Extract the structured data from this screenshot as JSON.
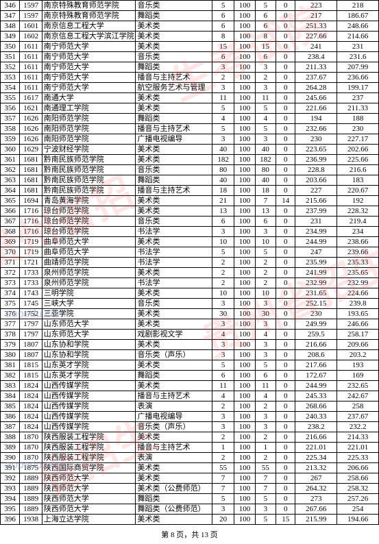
{
  "footer": "第 8 页，共 13 页",
  "rows": [
    [
      "346",
      "1597",
      "南京特殊教育师范学院",
      "音乐类",
      "5",
      "100",
      "5",
      "0",
      "223",
      "218"
    ],
    [
      "347",
      "1597",
      "南京特殊教育师范学院",
      "舞蹈类",
      "6",
      "100",
      "6",
      "0",
      "217",
      "186.67"
    ],
    [
      "348",
      "1601",
      "南京信息工程大学",
      "美术类",
      "6",
      "100",
      "6",
      "0",
      "251.33",
      "248.66"
    ],
    [
      "349",
      "1602",
      "南京信息工程大学滨江学院",
      "美术类",
      "8",
      "100",
      "8",
      "0",
      "227.66",
      "214.66"
    ],
    [
      "350",
      "1611",
      "南宁师范大学",
      "美术类",
      "15",
      "100",
      "15",
      "0",
      "241",
      "231"
    ],
    [
      "351",
      "1611",
      "南宁师范大学",
      "音乐类",
      "6",
      "100",
      "6",
      "0",
      "238.4",
      "231.6"
    ],
    [
      "352",
      "1611",
      "南宁师范大学",
      "舞蹈类",
      "3",
      "100",
      "3",
      "0",
      "211.33",
      "207.99"
    ],
    [
      "353",
      "1611",
      "南宁师范大学",
      "播音与主持艺术",
      "2",
      "100",
      "2",
      "0",
      "237.67",
      "236.66"
    ],
    [
      "354",
      "1611",
      "南宁师范大学",
      "航空服务艺术与管理",
      "3",
      "100",
      "3",
      "0",
      "264.28",
      "199.17"
    ],
    [
      "355",
      "1617",
      "南通大学",
      "美术类",
      "11",
      "100",
      "11",
      "0",
      "245.66",
      "237"
    ],
    [
      "356",
      "1621",
      "南通理工学院",
      "美术类",
      "5",
      "100",
      "5",
      "0",
      "221.66",
      "211.33"
    ],
    [
      "357",
      "1626",
      "南阳师范学院",
      "舞蹈类",
      "4",
      "100",
      "4",
      "0",
      "194",
      "188"
    ],
    [
      "358",
      "1626",
      "南阳师范学院",
      "播音与主持艺术",
      "5",
      "100",
      "5",
      "0",
      "232.66",
      "230"
    ],
    [
      "359",
      "1626",
      "南阳师范学院",
      "广播电视编导",
      "3",
      "100",
      "3",
      "0",
      "230",
      "227.17"
    ],
    [
      "360",
      "1629",
      "宁波财经学院",
      "美术类",
      "40",
      "100",
      "40",
      "0",
      "223.65",
      "202.66"
    ],
    [
      "361",
      "1681",
      "黔南民族师范学院",
      "美术类",
      "182",
      "100",
      "182",
      "0",
      "236.99",
      "225.66"
    ],
    [
      "362",
      "1681",
      "黔南民族师范学院",
      "音乐类",
      "80",
      "100",
      "80",
      "0",
      "228.8",
      "216.6"
    ],
    [
      "363",
      "1681",
      "黔南民族师范学院",
      "舞蹈类",
      "40",
      "100",
      "40",
      "0",
      "203.66",
      "183"
    ],
    [
      "364",
      "1681",
      "黔南民族师范学院",
      "播音与主持艺术",
      "18",
      "100",
      "18",
      "0",
      "227",
      "220.67"
    ],
    [
      "365",
      "1694",
      "青岛黄海学院",
      "美术类",
      "21",
      "100",
      "7",
      "14",
      "215.66",
      "192"
    ],
    [
      "366",
      "1716",
      "琼台师范学院",
      "美术类",
      "13",
      "100",
      "13",
      "0",
      "237.99",
      "228.32"
    ],
    [
      "367",
      "1716",
      "琼台师范学院",
      "音乐类",
      "6",
      "100",
      "6",
      "0",
      "231",
      "219.4"
    ],
    [
      "368",
      "1716",
      "琼台师范学院",
      "书法学",
      "3",
      "100",
      "3",
      "0",
      "234.99",
      "234"
    ],
    [
      "369",
      "1719",
      "曲阜师范大学",
      "美术类",
      "10",
      "100",
      "10",
      "0",
      "244.99",
      "238.66"
    ],
    [
      "370",
      "1719",
      "曲阜师范大学",
      "书法学",
      "5",
      "100",
      "5",
      "0",
      "247",
      "239.66"
    ],
    [
      "371",
      "1721",
      "曲靖师范学院",
      "书法学",
      "2",
      "100",
      "2",
      "0",
      "235.99",
      "235.33"
    ],
    [
      "372",
      "1733",
      "泉州师范学院",
      "美术类",
      "2",
      "100",
      "2",
      "0",
      "241.99",
      "235.65"
    ],
    [
      "373",
      "1733",
      "泉州师范学院",
      "书法学",
      "2",
      "100",
      "2",
      "0",
      "232.99",
      "232.99"
    ],
    [
      "374",
      "1743",
      "三明学院",
      "美术类",
      "10",
      "100",
      "10",
      "0",
      "231.65",
      "224.66"
    ],
    [
      "375",
      "1745",
      "三峡大学",
      "音乐类",
      "3",
      "100",
      "3",
      "0",
      "252.15",
      "239.8"
    ],
    [
      "376",
      "1752",
      "三亚学院",
      "美术类",
      "30",
      "100",
      "30",
      "0",
      "230",
      "193.65"
    ],
    [
      "377",
      "1797",
      "山东师范大学",
      "美术类",
      "3",
      "100",
      "3",
      "0",
      "249.99",
      "246.66"
    ],
    [
      "378",
      "1797",
      "山东师范大学",
      "戏剧影视文学",
      "4",
      "100",
      "4",
      "0",
      "259.5",
      "258.17"
    ],
    [
      "379",
      "1807",
      "山东协和学院",
      "美术类",
      "3",
      "100",
      "3",
      "0",
      "216.66",
      "209.66"
    ],
    [
      "380",
      "1807",
      "山东协和学院",
      "音乐类（声乐）",
      "3",
      "100",
      "3",
      "0",
      "208.6",
      "203.2"
    ],
    [
      "381",
      "1815",
      "山东英才学院",
      "美术类",
      "5",
      "100",
      "5",
      "0",
      "217.66",
      "193"
    ],
    [
      "382",
      "1815",
      "山东英才学院",
      "舞蹈类",
      "6",
      "100",
      "6",
      "0",
      "172.67",
      "169"
    ],
    [
      "383",
      "1824",
      "山西传媒学院",
      "美术类",
      "11",
      "100",
      "11",
      "0",
      "244.99",
      "232.65"
    ],
    [
      "384",
      "1824",
      "山西传媒学院",
      "播音与主持艺术",
      "4",
      "100",
      "4",
      "0",
      "245.33",
      "242.67"
    ],
    [
      "385",
      "1824",
      "山西传媒学院",
      "表演",
      "2",
      "100",
      "2",
      "0",
      "268.66",
      "258"
    ],
    [
      "386",
      "1824",
      "山西传媒学院",
      "广播电视编导",
      "3",
      "100",
      "3",
      "0",
      "240.33",
      "237.67"
    ],
    [
      "387",
      "1824",
      "山西传媒学院",
      "音乐类（声乐）",
      "3",
      "100",
      "3",
      "0",
      "238.2",
      "232.2"
    ],
    [
      "388",
      "1870",
      "陕西服装工程学院",
      "美术类",
      "2",
      "100",
      "2",
      "0",
      "216.66",
      "214.33"
    ],
    [
      "389",
      "1870",
      "陕西服装工程学院",
      "播音与主持艺术",
      "1",
      "100",
      "1",
      "0",
      "221.01",
      "221.01"
    ],
    [
      "390",
      "1870",
      "陕西服装工程学院",
      "表演",
      "2",
      "100",
      "2",
      "0",
      "225.34",
      "225.33"
    ],
    [
      "391",
      "1875",
      "陕西国际商贸学院",
      "美术类",
      "55",
      "100",
      "55",
      "0",
      "213.32",
      "206.66"
    ],
    [
      "392",
      "1889",
      "陕西师范大学",
      "美术类",
      "7",
      "100",
      "7",
      "0",
      "267",
      "258.66"
    ],
    [
      "393",
      "1889",
      "陕西师范大学",
      "美术类（公费师范）",
      "7",
      "100",
      "7",
      "0",
      "264.32",
      "258.32"
    ],
    [
      "394",
      "1889",
      "陕西师范大学",
      "舞蹈类",
      "5",
      "100",
      "5",
      "0",
      "273",
      "257.26"
    ],
    [
      "395",
      "1889",
      "陕西师范大学",
      "舞蹈类（公费师范）",
      "3",
      "100",
      "3",
      "0",
      "267.66",
      "254"
    ],
    [
      "396",
      "1938",
      "上海立达学院",
      "美术类",
      "20",
      "100",
      "5",
      "15",
      "215.99",
      "194.66"
    ]
  ]
}
